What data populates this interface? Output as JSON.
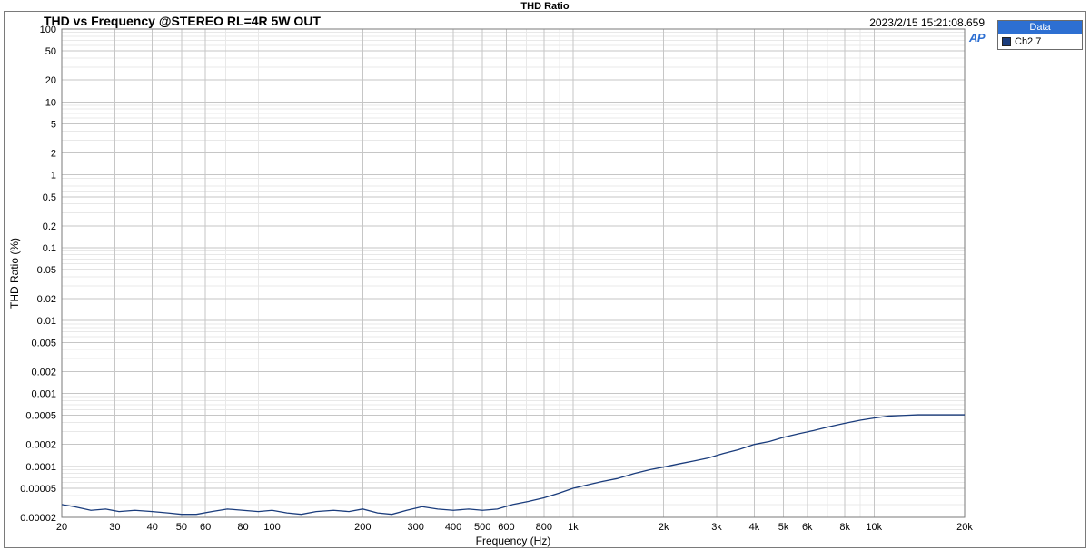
{
  "app_title": "THD Ratio",
  "chart": {
    "type": "line-loglog",
    "title": "THD vs Frequency @STEREO RL=4R 5W OUT",
    "timestamp": "2023/2/15 15:21:08.659",
    "xlabel": "Frequency (Hz)",
    "ylabel": "THD Ratio (%)",
    "x_range": [
      20,
      20000
    ],
    "y_range": [
      2e-05,
      100
    ],
    "background_color": "#ffffff",
    "plot_border_color": "#7a7a7a",
    "grid_major_color": "#c6c6c6",
    "grid_minor_color": "#e8e8e8",
    "axis_font_size": 11,
    "label_font_size": 12,
    "title_font_size": 14,
    "x_ticks_major": [
      20,
      30,
      40,
      50,
      60,
      80,
      100,
      200,
      300,
      400,
      500,
      600,
      800,
      1000,
      2000,
      3000,
      4000,
      5000,
      6000,
      8000,
      10000,
      20000
    ],
    "x_tick_labels": [
      "20",
      "30",
      "40",
      "50",
      "60",
      "80",
      "100",
      "200",
      "300",
      "400",
      "500",
      "600",
      "800",
      "1k",
      "2k",
      "3k",
      "4k",
      "5k",
      "6k",
      "8k",
      "10k",
      "20k"
    ],
    "y_ticks_major": [
      2e-05,
      5e-05,
      0.0001,
      0.0002,
      0.0005,
      0.001,
      0.002,
      0.005,
      0.01,
      0.02,
      0.05,
      0.1,
      0.2,
      0.5,
      1,
      2,
      5,
      10,
      20,
      50,
      100
    ],
    "y_tick_labels": [
      "0.00002",
      "0.00005",
      "0.0001",
      "0.0002",
      "0.0005",
      "0.001",
      "0.002",
      "0.005",
      "0.01",
      "0.02",
      "0.05",
      "0.1",
      "0.2",
      "0.5",
      "1",
      "2",
      "5",
      "10",
      "20",
      "50",
      "100"
    ],
    "series": [
      {
        "name": "Ch2 7",
        "color": "#1a3c7c",
        "line_width": 1.3,
        "x": [
          20,
          22,
          25,
          28,
          31,
          35,
          40,
          45,
          50,
          56,
          63,
          71,
          80,
          90,
          100,
          112,
          125,
          140,
          160,
          180,
          200,
          224,
          250,
          280,
          315,
          355,
          400,
          450,
          500,
          560,
          630,
          710,
          800,
          900,
          1000,
          1120,
          1250,
          1400,
          1600,
          1800,
          2000,
          2240,
          2500,
          2800,
          3150,
          3550,
          4000,
          4500,
          5000,
          5600,
          6300,
          7100,
          8000,
          9000,
          10000,
          11200,
          12500,
          14000,
          16000,
          18000,
          20000
        ],
        "y": [
          3e-05,
          2.8e-05,
          2.5e-05,
          2.6e-05,
          2.4e-05,
          2.5e-05,
          2.4e-05,
          2.3e-05,
          2.2e-05,
          2.2e-05,
          2.4e-05,
          2.6e-05,
          2.5e-05,
          2.4e-05,
          2.5e-05,
          2.3e-05,
          2.2e-05,
          2.4e-05,
          2.5e-05,
          2.4e-05,
          2.6e-05,
          2.3e-05,
          2.2e-05,
          2.5e-05,
          2.8e-05,
          2.6e-05,
          2.5e-05,
          2.6e-05,
          2.5e-05,
          2.6e-05,
          3e-05,
          3.3e-05,
          3.7e-05,
          4.3e-05,
          5e-05,
          5.6e-05,
          6.2e-05,
          6.8e-05,
          8e-05,
          9e-05,
          9.8e-05,
          0.000108,
          0.000118,
          0.00013,
          0.00015,
          0.00017,
          0.0002,
          0.00022,
          0.00025,
          0.00028,
          0.00031,
          0.00035,
          0.00039,
          0.00043,
          0.00046,
          0.00049,
          0.0005,
          0.00051,
          0.00051,
          0.00051,
          0.00051
        ]
      }
    ]
  },
  "legend": {
    "header": "Data",
    "header_bg": "#2d6fd2",
    "header_fg": "#ffffff",
    "items": [
      {
        "label": "Ch2 7",
        "color": "#1a3c7c"
      }
    ]
  },
  "logo_text": "AP",
  "logo_color": "#2d6fd2"
}
